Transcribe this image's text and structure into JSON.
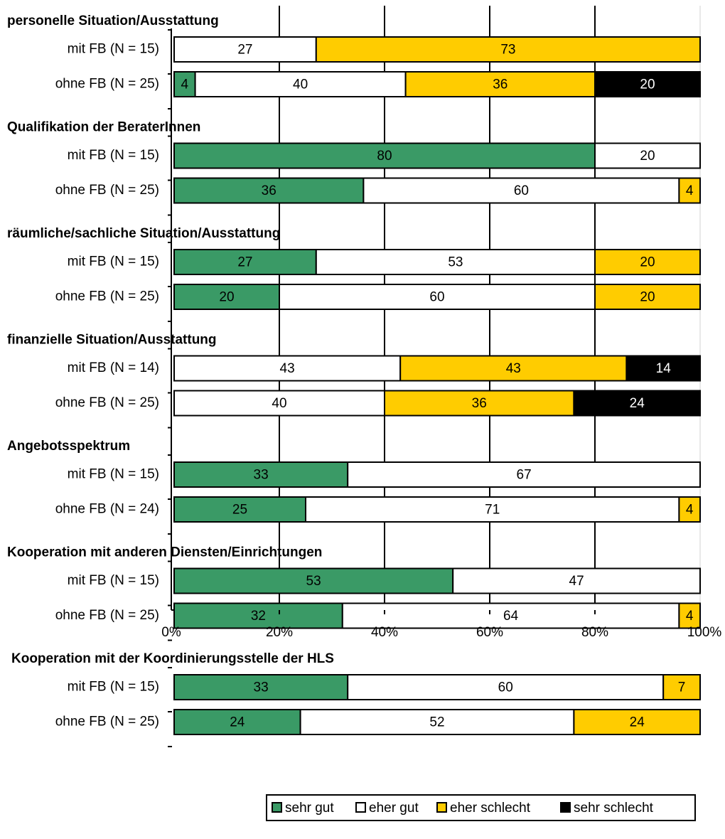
{
  "chart_data": {
    "type": "bar",
    "orientation": "horizontal",
    "stacked": true,
    "xlim": [
      0,
      100
    ],
    "x_tick_labels": [
      "0%",
      "20%",
      "40%",
      "60%",
      "80%",
      "100%"
    ],
    "legend": {
      "placement": "bottom-right",
      "entries": [
        {
          "name": "sehr gut",
          "color": "#3a9a66"
        },
        {
          "name": "eher gut",
          "color": "#ffffff"
        },
        {
          "name": "eher schlecht",
          "color": "#ffcc00"
        },
        {
          "name": "sehr schlecht",
          "color": "#000000"
        }
      ]
    },
    "groups": [
      {
        "title": "personelle Situation/Ausstattung",
        "bars": [
          {
            "label": "mit FB (N = 15)",
            "values": [
              0,
              27,
              73,
              0
            ]
          },
          {
            "label": "ohne FB (N = 25)",
            "values": [
              4,
              40,
              36,
              20
            ]
          }
        ]
      },
      {
        "title": "Qualifikation der BeraterInnen",
        "bars": [
          {
            "label": "mit FB (N = 15)",
            "values": [
              80,
              20,
              0,
              0
            ]
          },
          {
            "label": "ohne FB (N = 25)",
            "values": [
              36,
              60,
              4,
              0
            ]
          }
        ]
      },
      {
        "title": "räumliche/sachliche Situation/Ausstattung",
        "bars": [
          {
            "label": "mit FB (N = 15)",
            "values": [
              27,
              53,
              20,
              0
            ]
          },
          {
            "label": "ohne FB (N = 25)",
            "values": [
              20,
              60,
              20,
              0
            ]
          }
        ]
      },
      {
        "title": "finanzielle Situation/Ausstattung",
        "bars": [
          {
            "label": "mit FB (N = 14)",
            "values": [
              0,
              43,
              43,
              14
            ]
          },
          {
            "label": "ohne FB (N = 25)",
            "values": [
              0,
              40,
              36,
              24
            ]
          }
        ]
      },
      {
        "title": "Angebotsspektrum",
        "bars": [
          {
            "label": "mit FB (N = 15)",
            "values": [
              33,
              67,
              0,
              0
            ]
          },
          {
            "label": "ohne FB (N = 24)",
            "values": [
              25,
              71,
              4,
              0
            ]
          }
        ]
      },
      {
        "title": "Kooperation mit anderen Diensten/Einrichtungen",
        "bars": [
          {
            "label": "mit FB (N = 15)",
            "values": [
              53,
              47,
              0,
              0
            ]
          },
          {
            "label": "ohne FB (N = 25)",
            "values": [
              32,
              64,
              4,
              0
            ]
          }
        ]
      },
      {
        "title": "Kooperation mit der Koordinierungsstelle der HLS",
        "bars": [
          {
            "label": "mit FB (N = 15)",
            "values": [
              33,
              60,
              7,
              0
            ]
          },
          {
            "label": "ohne FB (N = 25)",
            "values": [
              24,
              52,
              24,
              0
            ]
          }
        ]
      }
    ]
  }
}
